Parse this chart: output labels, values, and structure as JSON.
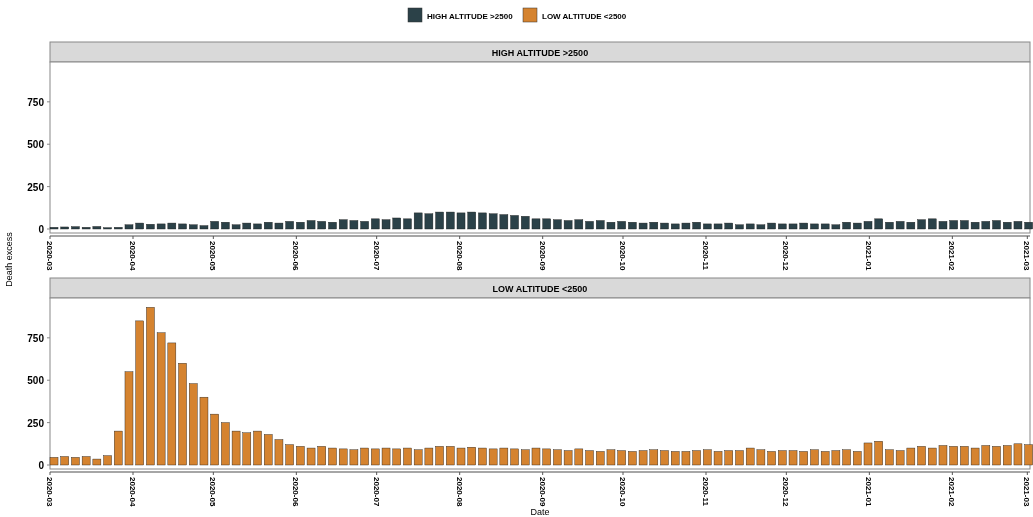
{
  "chart_data": [
    {
      "type": "bar",
      "title": "HIGH ALTITUDE >2500",
      "ylabel": "Death excess",
      "legend": "top",
      "grid": false,
      "x": [
        "2020-03-01",
        "2020-03-05",
        "2020-03-09",
        "2020-03-13",
        "2020-03-17",
        "2020-03-21",
        "2020-03-25",
        "2020-03-29",
        "2020-04-02",
        "2020-04-06",
        "2020-04-10",
        "2020-04-14",
        "2020-04-18",
        "2020-04-22",
        "2020-04-26",
        "2020-04-30",
        "2020-05-04",
        "2020-05-08",
        "2020-05-12",
        "2020-05-16",
        "2020-05-20",
        "2020-05-24",
        "2020-05-28",
        "2020-06-01",
        "2020-06-05",
        "2020-06-09",
        "2020-06-13",
        "2020-06-17",
        "2020-06-21",
        "2020-06-25",
        "2020-06-29",
        "2020-07-03",
        "2020-07-07",
        "2020-07-11",
        "2020-07-15",
        "2020-07-19",
        "2020-07-23",
        "2020-07-27",
        "2020-07-31",
        "2020-08-04",
        "2020-08-08",
        "2020-08-12",
        "2020-08-16",
        "2020-08-20",
        "2020-08-24",
        "2020-08-28",
        "2020-09-01",
        "2020-09-05",
        "2020-09-09",
        "2020-09-13",
        "2020-09-17",
        "2020-09-21",
        "2020-09-25",
        "2020-09-29",
        "2020-10-03",
        "2020-10-07",
        "2020-10-11",
        "2020-10-15",
        "2020-10-19",
        "2020-10-23",
        "2020-10-27",
        "2020-10-31",
        "2020-11-04",
        "2020-11-08",
        "2020-11-12",
        "2020-11-16",
        "2020-11-20",
        "2020-11-24",
        "2020-11-28",
        "2020-12-02",
        "2020-12-06",
        "2020-12-10",
        "2020-12-14",
        "2020-12-18",
        "2020-12-22",
        "2020-12-26",
        "2020-12-30",
        "2021-01-03",
        "2021-01-07",
        "2021-01-11",
        "2021-01-15",
        "2021-01-19",
        "2021-01-23",
        "2021-01-27",
        "2021-01-31",
        "2021-02-04",
        "2021-02-08",
        "2021-02-12",
        "2021-02-16",
        "2021-02-20",
        "2021-02-24",
        "2021-02-28"
      ],
      "series": [
        {
          "name": "HIGH ALTITUDE >2500",
          "color": "#2b4148",
          "values": [
            10,
            12,
            14,
            10,
            15,
            8,
            10,
            25,
            35,
            28,
            30,
            35,
            30,
            25,
            20,
            45,
            40,
            25,
            35,
            30,
            40,
            35,
            45,
            40,
            50,
            45,
            40,
            55,
            50,
            45,
            60,
            55,
            65,
            60,
            95,
            90,
            100,
            100,
            95,
            100,
            95,
            90,
            85,
            80,
            75,
            60,
            60,
            55,
            50,
            55,
            45,
            50,
            40,
            45,
            40,
            35,
            40,
            35,
            30,
            35,
            40,
            30,
            30,
            35,
            25,
            30,
            25,
            35,
            30,
            30,
            35,
            30,
            30,
            25,
            40,
            35,
            45,
            60,
            40,
            45,
            40,
            55,
            60,
            45,
            50,
            50,
            40,
            45,
            50,
            40,
            45,
            40
          ]
        }
      ],
      "xlim": [
        "2020-03-01",
        "2021-03-02"
      ],
      "xticks": [
        "2020-03",
        "2020-04",
        "2020-05",
        "2020-06",
        "2020-07",
        "2020-08",
        "2020-09",
        "2020-10",
        "2020-11",
        "2020-12",
        "2021-01",
        "2021-02",
        "2021-03"
      ],
      "ylim": [
        0,
        985
      ],
      "yticks": [
        0,
        250,
        500,
        750
      ]
    },
    {
      "type": "bar",
      "title": "LOW ALTITUDE <2500",
      "xlabel": "Date",
      "legend": "top",
      "grid": false,
      "x": [
        "2020-03-01",
        "2020-03-05",
        "2020-03-09",
        "2020-03-13",
        "2020-03-17",
        "2020-03-21",
        "2020-03-25",
        "2020-03-29",
        "2020-04-02",
        "2020-04-06",
        "2020-04-10",
        "2020-04-14",
        "2020-04-18",
        "2020-04-22",
        "2020-04-26",
        "2020-04-30",
        "2020-05-04",
        "2020-05-08",
        "2020-05-12",
        "2020-05-16",
        "2020-05-20",
        "2020-05-24",
        "2020-05-28",
        "2020-06-01",
        "2020-06-05",
        "2020-06-09",
        "2020-06-13",
        "2020-06-17",
        "2020-06-21",
        "2020-06-25",
        "2020-06-29",
        "2020-07-03",
        "2020-07-07",
        "2020-07-11",
        "2020-07-15",
        "2020-07-19",
        "2020-07-23",
        "2020-07-27",
        "2020-07-31",
        "2020-08-04",
        "2020-08-08",
        "2020-08-12",
        "2020-08-16",
        "2020-08-20",
        "2020-08-24",
        "2020-08-28",
        "2020-09-01",
        "2020-09-05",
        "2020-09-09",
        "2020-09-13",
        "2020-09-17",
        "2020-09-21",
        "2020-09-25",
        "2020-09-29",
        "2020-10-03",
        "2020-10-07",
        "2020-10-11",
        "2020-10-15",
        "2020-10-19",
        "2020-10-23",
        "2020-10-27",
        "2020-10-31",
        "2020-11-04",
        "2020-11-08",
        "2020-11-12",
        "2020-11-16",
        "2020-11-20",
        "2020-11-24",
        "2020-11-28",
        "2020-12-02",
        "2020-12-06",
        "2020-12-10",
        "2020-12-14",
        "2020-12-18",
        "2020-12-22",
        "2020-12-26",
        "2020-12-30",
        "2021-01-03",
        "2021-01-07",
        "2021-01-11",
        "2021-01-15",
        "2021-01-19",
        "2021-01-23",
        "2021-01-27",
        "2021-01-31",
        "2021-02-04",
        "2021-02-08",
        "2021-02-12",
        "2021-02-16",
        "2021-02-20",
        "2021-02-24",
        "2021-02-28"
      ],
      "series": [
        {
          "name": "LOW ALTITUDE <2500",
          "color": "#d5832f",
          "values": [
            45,
            50,
            45,
            50,
            35,
            55,
            200,
            550,
            850,
            930,
            780,
            720,
            600,
            480,
            400,
            300,
            250,
            200,
            190,
            200,
            180,
            150,
            120,
            110,
            100,
            110,
            100,
            95,
            90,
            100,
            95,
            100,
            95,
            100,
            90,
            100,
            110,
            110,
            100,
            105,
            100,
            95,
            100,
            95,
            90,
            100,
            95,
            90,
            85,
            95,
            85,
            80,
            90,
            85,
            80,
            85,
            90,
            85,
            80,
            80,
            85,
            90,
            80,
            85,
            85,
            100,
            90,
            80,
            85,
            85,
            80,
            90,
            80,
            85,
            90,
            80,
            130,
            140,
            90,
            85,
            100,
            110,
            100,
            115,
            110,
            110,
            100,
            115,
            110,
            115,
            125,
            120
          ]
        }
      ],
      "xlim": [
        "2020-03-01",
        "2021-03-02"
      ],
      "xticks": [
        "2020-03",
        "2020-04",
        "2020-05",
        "2020-06",
        "2020-07",
        "2020-08",
        "2020-09",
        "2020-10",
        "2020-11",
        "2020-12",
        "2021-01",
        "2021-02",
        "2021-03"
      ],
      "ylim": [
        0,
        985
      ],
      "yticks": [
        0,
        250,
        500,
        750
      ]
    }
  ]
}
